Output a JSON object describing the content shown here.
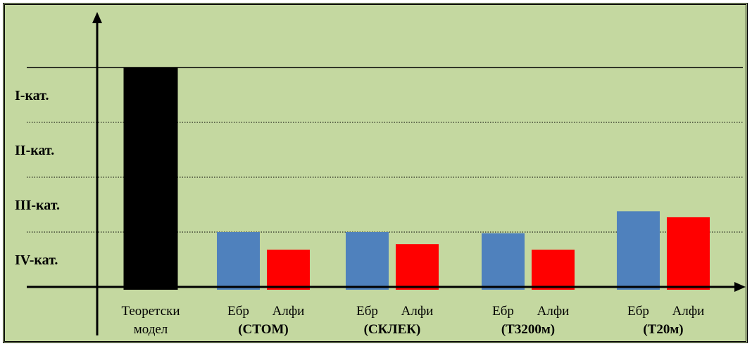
{
  "chart_data": {
    "type": "bar",
    "y_categories": [
      "I-кат.",
      "II-кат.",
      "III-кат.",
      "IV-кат."
    ],
    "ylim": [
      0,
      4
    ],
    "grid": {
      "top_line": "solid",
      "inner_lines": "dotted"
    },
    "groups": [
      {
        "label": "Теоретски",
        "sublabel": "модел",
        "bars": [
          {
            "label": "",
            "value": 4.0,
            "color": "#000000"
          }
        ]
      },
      {
        "label": "(СТОМ)",
        "bars": [
          {
            "label": "Ебр",
            "value": 1.0,
            "color": "#4f81bd"
          },
          {
            "label": "Алфи",
            "value": 0.68,
            "color": "#ff0000"
          }
        ]
      },
      {
        "label": "(СКЛЕК)",
        "bars": [
          {
            "label": "Ебр",
            "value": 1.0,
            "color": "#4f81bd"
          },
          {
            "label": "Алфи",
            "value": 0.78,
            "color": "#ff0000"
          }
        ]
      },
      {
        "label": "(Т3200м)",
        "bars": [
          {
            "label": "Ебр",
            "value": 0.98,
            "color": "#4f81bd"
          },
          {
            "label": "Алфи",
            "value": 0.68,
            "color": "#ff0000"
          }
        ]
      },
      {
        "label": "(Т20м)",
        "bars": [
          {
            "label": "Ебр",
            "value": 1.38,
            "color": "#4f81bd"
          },
          {
            "label": "Алфи",
            "value": 1.27,
            "color": "#ff0000"
          }
        ]
      }
    ]
  }
}
